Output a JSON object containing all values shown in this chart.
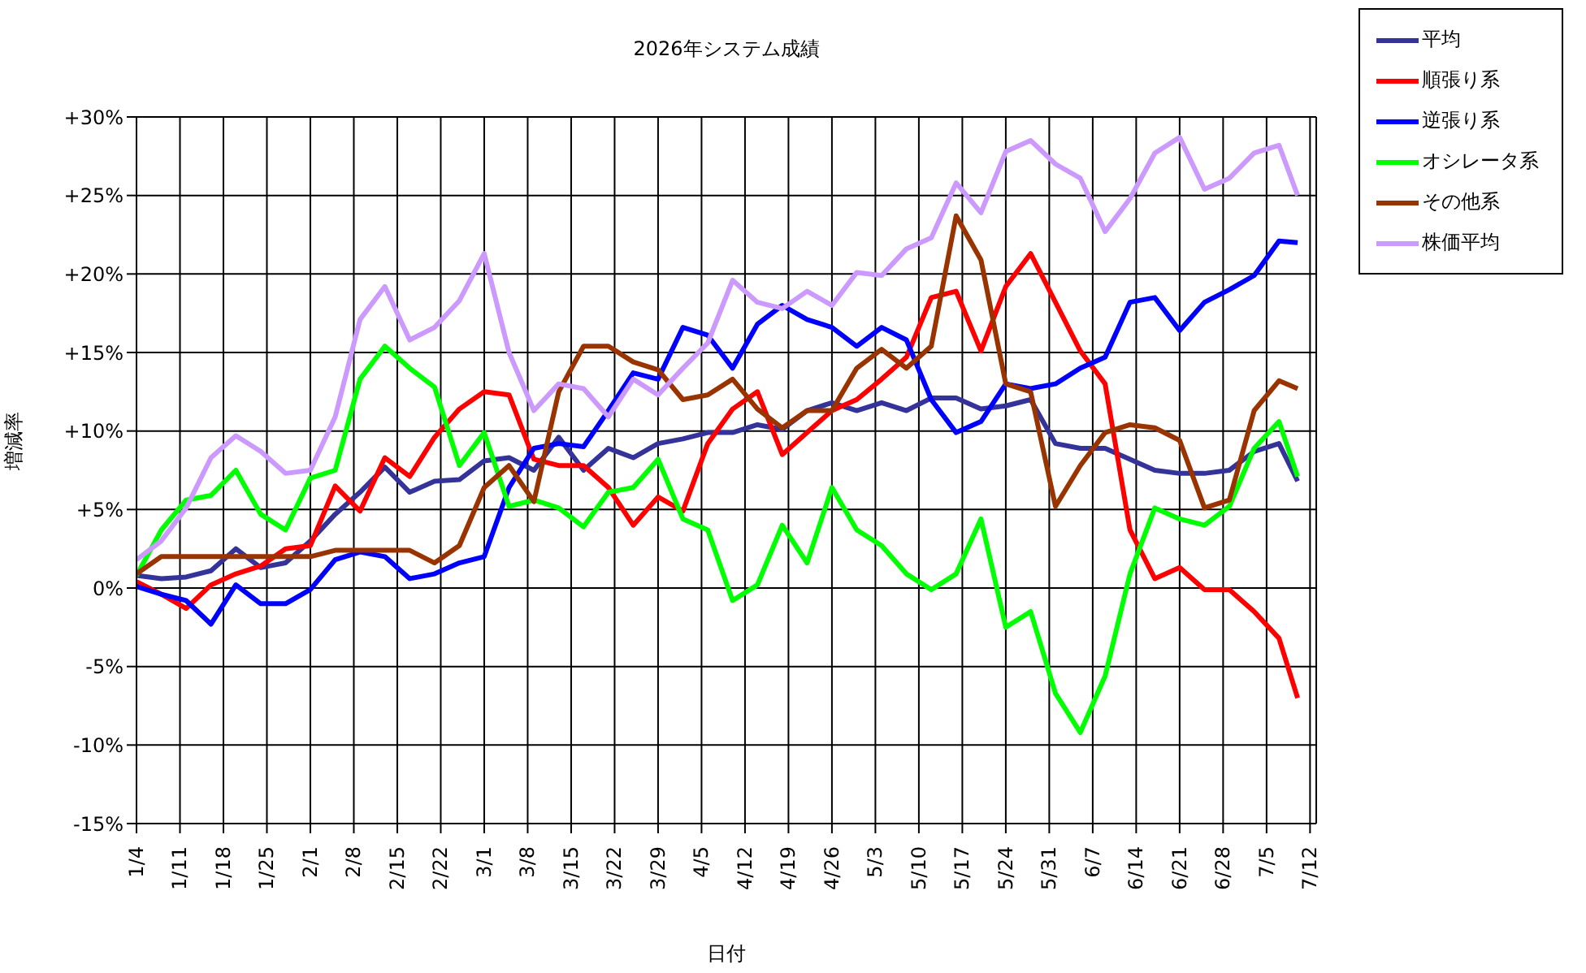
{
  "chart_data": {
    "type": "line",
    "title": "2026年システム成績",
    "xlabel": "日付",
    "ylabel": "増減率",
    "x": [
      "--01-04",
      "--01-08",
      "--01-12",
      "--01-16",
      "--01-20",
      "--01-24",
      "--01-28",
      "--02-01",
      "--02-05",
      "--02-09",
      "--02-13",
      "--02-17",
      "--02-21",
      "--02-25",
      "--03-01",
      "--03-05",
      "--03-09",
      "--03-13",
      "--03-17",
      "--03-21",
      "--03-25",
      "--03-29",
      "--04-02",
      "--04-06",
      "--04-10",
      "--04-14",
      "--04-18",
      "--04-22",
      "--04-26",
      "--04-30",
      "--05-04",
      "--05-08",
      "--05-12",
      "--05-16",
      "--05-20",
      "--05-24",
      "--05-28",
      "--06-01",
      "--06-05",
      "--06-09",
      "--06-13",
      "--06-17",
      "--06-21",
      "--06-25",
      "--06-29",
      "--07-03",
      "--07-07",
      "--07-10"
    ],
    "series": [
      {
        "name": "平均",
        "color": "#333399",
        "values": [
          0.8,
          0.6,
          0.7,
          1.1,
          2.5,
          1.3,
          1.6,
          3.0,
          4.7,
          6.1,
          7.7,
          6.1,
          6.8,
          6.9,
          8.1,
          8.3,
          7.5,
          9.6,
          7.5,
          8.9,
          8.3,
          9.2,
          9.5,
          9.9,
          9.9,
          10.4,
          10.1,
          11.3,
          11.8,
          11.3,
          11.8,
          11.3,
          12.1,
          12.1,
          11.4,
          11.6,
          12.0,
          9.2,
          8.9,
          8.9,
          8.2,
          7.5,
          7.3,
          7.3,
          7.5,
          8.7,
          9.2,
          6.8
        ]
      },
      {
        "name": "順張り系",
        "color": "#ff0000",
        "values": [
          0.4,
          -0.4,
          -1.3,
          0.2,
          0.9,
          1.4,
          2.5,
          2.7,
          6.5,
          4.9,
          8.3,
          7.1,
          9.6,
          11.4,
          12.5,
          12.3,
          8.2,
          7.8,
          7.8,
          6.4,
          4.0,
          5.8,
          4.9,
          9.2,
          11.4,
          12.5,
          8.5,
          9.9,
          11.3,
          12.0,
          13.3,
          14.7,
          18.5,
          18.9,
          15.1,
          19.2,
          21.3,
          18.2,
          15.1,
          13.0,
          3.7,
          0.6,
          1.3,
          -0.1,
          -0.1,
          -1.5,
          -3.2,
          -7.0
        ]
      },
      {
        "name": "逆張り系",
        "color": "#0000ff",
        "values": [
          0.1,
          -0.4,
          -0.8,
          -2.3,
          0.2,
          -1.0,
          -1.0,
          -0.1,
          1.8,
          2.3,
          2.0,
          0.6,
          0.9,
          1.6,
          2.0,
          6.4,
          8.9,
          9.2,
          9.0,
          11.3,
          13.7,
          13.3,
          16.6,
          16.1,
          14.0,
          16.8,
          18.0,
          17.1,
          16.6,
          15.4,
          16.6,
          15.8,
          12.0,
          9.9,
          10.6,
          13.0,
          12.7,
          13.0,
          14.0,
          14.7,
          18.2,
          18.5,
          16.4,
          18.2,
          19.0,
          19.9,
          22.1,
          22.0
        ]
      },
      {
        "name": "オシレータ系",
        "color": "#00ff00",
        "values": [
          0.8,
          3.7,
          5.6,
          5.9,
          7.5,
          4.7,
          3.7,
          7.0,
          7.5,
          13.3,
          15.4,
          14.0,
          12.8,
          7.8,
          9.9,
          5.2,
          5.6,
          5.1,
          3.9,
          6.1,
          6.4,
          8.2,
          4.4,
          3.7,
          -0.8,
          0.2,
          4.0,
          1.6,
          6.4,
          3.7,
          2.7,
          0.9,
          -0.1,
          0.9,
          4.4,
          -2.5,
          -1.5,
          -6.7,
          -9.2,
          -5.6,
          0.9,
          5.1,
          4.4,
          4.0,
          5.2,
          8.9,
          10.6,
          7.1
        ]
      },
      {
        "name": "その他系",
        "color": "#993300",
        "values": [
          0.9,
          2.0,
          2.0,
          2.0,
          2.0,
          2.0,
          2.0,
          2.0,
          2.4,
          2.4,
          2.4,
          2.4,
          1.6,
          2.7,
          6.4,
          7.8,
          5.5,
          12.5,
          15.4,
          15.4,
          14.4,
          13.9,
          12.0,
          12.3,
          13.3,
          11.4,
          10.2,
          11.3,
          11.3,
          14.0,
          15.2,
          14.0,
          15.4,
          23.7,
          20.9,
          13.0,
          12.5,
          5.2,
          7.8,
          9.9,
          10.4,
          10.2,
          9.4,
          5.1,
          5.6,
          11.3,
          13.2,
          12.7
        ]
      },
      {
        "name": "株価平均",
        "color": "#cc99ff",
        "values": [
          1.8,
          3.0,
          5.1,
          8.3,
          9.7,
          8.7,
          7.3,
          7.5,
          10.9,
          17.1,
          19.2,
          15.8,
          16.6,
          18.3,
          21.3,
          15.0,
          11.3,
          13.0,
          12.7,
          10.9,
          13.3,
          12.3,
          14.0,
          15.6,
          19.6,
          18.2,
          17.8,
          18.9,
          18.0,
          20.1,
          19.9,
          21.6,
          22.3,
          25.8,
          23.9,
          27.8,
          28.5,
          27.0,
          26.1,
          22.7,
          24.8,
          27.7,
          28.7,
          25.4,
          26.1,
          27.7,
          28.2,
          25.0
        ]
      }
    ],
    "xlim": [
      "--01-04",
      "--07-13"
    ],
    "xticks": [
      {
        "value": "--01-04",
        "label": "1/4"
      },
      {
        "value": "--01-11",
        "label": "1/11"
      },
      {
        "value": "--01-18",
        "label": "1/18"
      },
      {
        "value": "--01-25",
        "label": "1/25"
      },
      {
        "value": "--02-01",
        "label": "2/1"
      },
      {
        "value": "--02-08",
        "label": "2/8"
      },
      {
        "value": "--02-15",
        "label": "2/15"
      },
      {
        "value": "--02-22",
        "label": "2/22"
      },
      {
        "value": "--03-01",
        "label": "3/1"
      },
      {
        "value": "--03-08",
        "label": "3/8"
      },
      {
        "value": "--03-15",
        "label": "3/15"
      },
      {
        "value": "--03-22",
        "label": "3/22"
      },
      {
        "value": "--03-29",
        "label": "3/29"
      },
      {
        "value": "--04-05",
        "label": "4/5"
      },
      {
        "value": "--04-12",
        "label": "4/12"
      },
      {
        "value": "--04-19",
        "label": "4/19"
      },
      {
        "value": "--04-26",
        "label": "4/26"
      },
      {
        "value": "--05-03",
        "label": "5/3"
      },
      {
        "value": "--05-10",
        "label": "5/10"
      },
      {
        "value": "--05-17",
        "label": "5/17"
      },
      {
        "value": "--05-24",
        "label": "5/24"
      },
      {
        "value": "--05-31",
        "label": "5/31"
      },
      {
        "value": "--06-07",
        "label": "6/7"
      },
      {
        "value": "--06-14",
        "label": "6/14"
      },
      {
        "value": "--06-21",
        "label": "6/21"
      },
      {
        "value": "--06-28",
        "label": "6/28"
      },
      {
        "value": "--07-05",
        "label": "7/5"
      },
      {
        "value": "--07-12",
        "label": "7/12"
      }
    ],
    "ylim": [
      -15,
      30
    ],
    "yticks": [
      {
        "value": -15,
        "label": "-15%"
      },
      {
        "value": -10,
        "label": "-10%"
      },
      {
        "value": -5,
        "label": "-5%"
      },
      {
        "value": 0,
        "label": "0%"
      },
      {
        "value": 5,
        "label": "+5%"
      },
      {
        "value": 10,
        "label": "+10%"
      },
      {
        "value": 15,
        "label": "+15%"
      },
      {
        "value": 20,
        "label": "+20%"
      },
      {
        "value": 25,
        "label": "+25%"
      },
      {
        "value": 30,
        "label": "+30%"
      }
    ],
    "grid": true,
    "legend": "top right",
    "marker": "none",
    "line_style": "solid"
  }
}
